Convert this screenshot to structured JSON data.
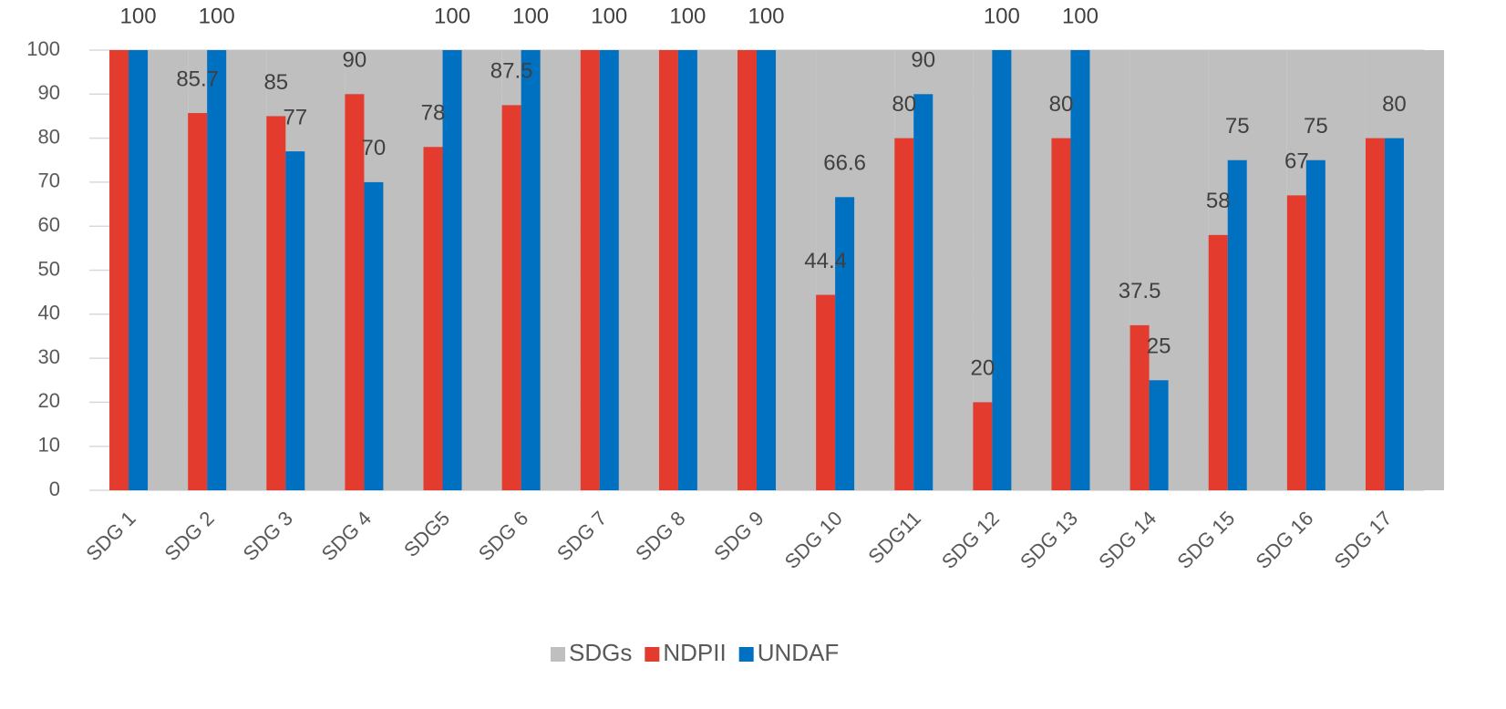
{
  "chart_data": {
    "type": "bar",
    "categories": [
      "SDG 1",
      "SDG 2",
      "SDG 3",
      "SDG 4",
      "SDG5",
      "SDG 6",
      "SDG 7",
      "SDG 8",
      "SDG 9",
      "SDG 10",
      "SDG11",
      "SDG 12",
      "SDG 13",
      "SDG 14",
      "SDG 15",
      "SDG 16",
      "SDG 17"
    ],
    "series": [
      {
        "name": "SDGs",
        "color": "#bfbfbf",
        "values": [
          100,
          100,
          100,
          100,
          100,
          100,
          100,
          100,
          100,
          100,
          100,
          100,
          100,
          100,
          100,
          100,
          100
        ]
      },
      {
        "name": "NDPII",
        "color": "#e33b2e",
        "values": [
          100,
          85.7,
          85,
          90,
          78,
          87.5,
          100,
          100,
          100,
          44.4,
          80,
          20,
          80,
          37.5,
          58,
          67,
          80
        ],
        "value_labels": [
          null,
          "85.7",
          "85",
          "90",
          "78",
          "87.5",
          null,
          null,
          null,
          "44.4",
          "80",
          "20",
          "80",
          "37.5",
          "58",
          "67",
          null
        ]
      },
      {
        "name": "UNDAF",
        "color": "#0070c0",
        "values": [
          100,
          100,
          77,
          70,
          100,
          100,
          100,
          100,
          100,
          66.6,
          90,
          100,
          100,
          25,
          75,
          75,
          80
        ],
        "value_labels": [
          "100",
          "100",
          "77",
          "70",
          "100",
          "100",
          "100",
          "100",
          "100",
          "66.6",
          "90",
          "100",
          "100",
          "25",
          "75",
          "75",
          "80"
        ]
      }
    ],
    "ylim": [
      0,
      100
    ],
    "yticks": [
      0,
      10,
      20,
      30,
      40,
      50,
      60,
      70,
      80,
      90,
      100
    ],
    "grid": true,
    "legend": "bottom"
  }
}
